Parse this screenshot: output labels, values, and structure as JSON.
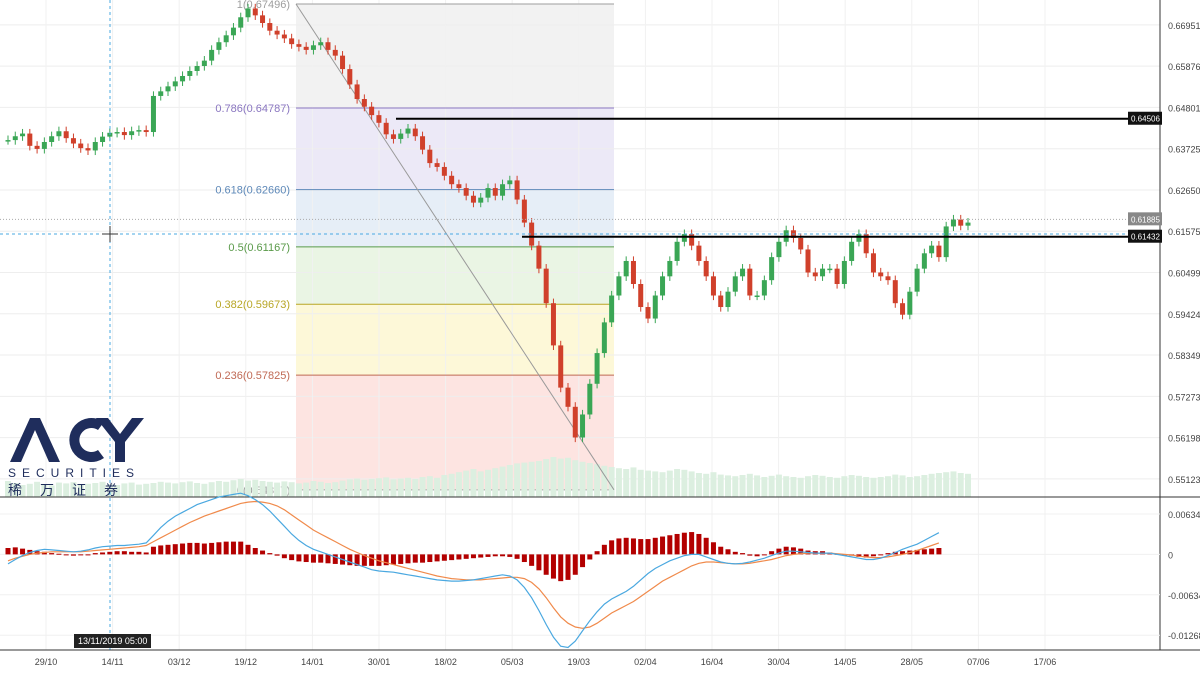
{
  "brand": {
    "name": "ACY",
    "sub": "SECURITIES",
    "cn": "稀万证券",
    "color": "#1f2d5c"
  },
  "cursor_label": "13/11/2019  05:00",
  "price_tags": [
    {
      "label": "0.64506",
      "value": 0.64506,
      "style": "dark"
    },
    {
      "label": "0.61885",
      "value": 0.61885,
      "style": "gray"
    },
    {
      "label": "0.61432",
      "value": 0.61432,
      "style": "dark"
    }
  ],
  "chart_data": [
    {
      "type": "candlestick",
      "title": "",
      "xlabel": "",
      "ylabel": "",
      "x_ticks": [
        "29/10",
        "14/11",
        "03/12",
        "19/12",
        "14/01",
        "30/01",
        "18/02",
        "05/03",
        "19/03",
        "02/04",
        "16/04",
        "30/04",
        "14/05",
        "28/05",
        "07/06",
        "17/06"
      ],
      "y_ticks": [
        "0.66951",
        "0.65876",
        "0.64801",
        "0.63725",
        "0.62650",
        "0.61575",
        "0.60499",
        "0.59424",
        "0.58349",
        "0.57273",
        "0.56198",
        "0.55123"
      ],
      "ylim": [
        0.5465,
        0.676
      ],
      "fibonacci": [
        {
          "label": "1(0.67496)",
          "value": 0.67496,
          "color": "#9e9e9e",
          "fill": "#f2f2f2"
        },
        {
          "label": "0.786(0.64787)",
          "value": 0.64787,
          "color": "#8a76c0",
          "fill": "#ece9f7"
        },
        {
          "label": "0.618(0.62660)",
          "value": 0.6266,
          "color": "#5d88b8",
          "fill": "#e6eef7"
        },
        {
          "label": "0.5(0.61167)",
          "value": 0.61167,
          "color": "#5a9a4a",
          "fill": "#eaf5e4"
        },
        {
          "label": "0.382(0.59673)",
          "value": 0.59673,
          "color": "#b8a626",
          "fill": "#fdf8d8"
        },
        {
          "label": "0.236(0.57825)",
          "value": 0.57825,
          "color": "#c06a55",
          "fill": "#fbe6e2"
        },
        {
          "label": "0(0.54837)",
          "value": 0.54837,
          "color": "#9e9e9e",
          "fill": ""
        }
      ],
      "horizontal_lines": [
        0.64506,
        0.61432
      ],
      "close": [
        0.6395,
        0.6405,
        0.6412,
        0.638,
        0.6372,
        0.639,
        0.6405,
        0.6418,
        0.64,
        0.6386,
        0.6374,
        0.6368,
        0.639,
        0.6404,
        0.6414,
        0.6416,
        0.6408,
        0.6418,
        0.6421,
        0.6416,
        0.651,
        0.6522,
        0.6535,
        0.6548,
        0.6562,
        0.6575,
        0.6588,
        0.6602,
        0.663,
        0.665,
        0.6668,
        0.6688,
        0.6715,
        0.6738,
        0.672,
        0.67,
        0.668,
        0.667,
        0.666,
        0.6645,
        0.6638,
        0.663,
        0.6642,
        0.665,
        0.663,
        0.6615,
        0.658,
        0.654,
        0.6502,
        0.6482,
        0.646,
        0.644,
        0.641,
        0.6398,
        0.6412,
        0.6425,
        0.6405,
        0.637,
        0.6335,
        0.6325,
        0.6302,
        0.628,
        0.627,
        0.625,
        0.6232,
        0.6245,
        0.627,
        0.625,
        0.628,
        0.629,
        0.624,
        0.618,
        0.612,
        0.606,
        0.597,
        0.586,
        0.575,
        0.57,
        0.562,
        0.568,
        0.576,
        0.584,
        0.592,
        0.599,
        0.604,
        0.608,
        0.602,
        0.596,
        0.593,
        0.599,
        0.604,
        0.608,
        0.613,
        0.615,
        0.612,
        0.608,
        0.604,
        0.599,
        0.596,
        0.6,
        0.604,
        0.606,
        0.599,
        0.599,
        0.603,
        0.609,
        0.613,
        0.616,
        0.614,
        0.611,
        0.605,
        0.604,
        0.606,
        0.606,
        0.602,
        0.608,
        0.613,
        0.615,
        0.61,
        0.605,
        0.604,
        0.603,
        0.597,
        0.594,
        0.6,
        0.606,
        0.61,
        0.612,
        0.609,
        0.617,
        0.6188,
        0.6172,
        0.618
      ],
      "volume": [
        0.4,
        0.35,
        0.3,
        0.33,
        0.38,
        0.31,
        0.29,
        0.36,
        0.34,
        0.37,
        0.3,
        0.33,
        0.35,
        0.38,
        0.32,
        0.3,
        0.34,
        0.36,
        0.31,
        0.33,
        0.35,
        0.38,
        0.36,
        0.34,
        0.37,
        0.39,
        0.35,
        0.33,
        0.37,
        0.4,
        0.38,
        0.42,
        0.45,
        0.41,
        0.43,
        0.4,
        0.38,
        0.36,
        0.39,
        0.37,
        0.34,
        0.36,
        0.4,
        0.38,
        0.35,
        0.37,
        0.41,
        0.44,
        0.46,
        0.43,
        0.45,
        0.47,
        0.49,
        0.44,
        0.46,
        0.48,
        0.45,
        0.5,
        0.52,
        0.48,
        0.55,
        0.58,
        0.62,
        0.66,
        0.7,
        0.64,
        0.68,
        0.72,
        0.76,
        0.8,
        0.84,
        0.86,
        0.88,
        0.9,
        0.95,
        1.0,
        0.96,
        0.98,
        0.92,
        0.88,
        0.85,
        0.82,
        0.78,
        0.75,
        0.72,
        0.7,
        0.74,
        0.68,
        0.66,
        0.64,
        0.62,
        0.66,
        0.7,
        0.68,
        0.64,
        0.6,
        0.58,
        0.62,
        0.56,
        0.54,
        0.52,
        0.55,
        0.58,
        0.54,
        0.5,
        0.53,
        0.56,
        0.52,
        0.5,
        0.48,
        0.52,
        0.55,
        0.53,
        0.5,
        0.48,
        0.52,
        0.55,
        0.53,
        0.5,
        0.48,
        0.5,
        0.52,
        0.56,
        0.54,
        0.5,
        0.52,
        0.55,
        0.58,
        0.6,
        0.62,
        0.64,
        0.6,
        0.58
      ],
      "macd": {
        "ylim": [
          -0.015,
          0.009
        ],
        "y_ticks": [
          "0.00634",
          "0",
          "-0.00634",
          "-0.01268"
        ],
        "tick_values": [
          0.00634,
          0,
          -0.00634,
          -0.01268
        ],
        "hist": [
          0.001,
          0.0011,
          0.0009,
          0.0007,
          0.0005,
          0.0004,
          0.0002,
          0.0001,
          -0.0001,
          -0.0002,
          -0.0001,
          0.0,
          0.0002,
          0.0003,
          0.0004,
          0.0005,
          0.0005,
          0.0004,
          0.0004,
          0.0003,
          0.0012,
          0.0014,
          0.0015,
          0.0016,
          0.0017,
          0.0018,
          0.0018,
          0.0017,
          0.0018,
          0.0019,
          0.002,
          0.002,
          0.002,
          0.0015,
          0.001,
          0.0006,
          0.0002,
          -0.0002,
          -0.0006,
          -0.0009,
          -0.0011,
          -0.0012,
          -0.0013,
          -0.0013,
          -0.0014,
          -0.0015,
          -0.0016,
          -0.0017,
          -0.0018,
          -0.0018,
          -0.0018,
          -0.0018,
          -0.0017,
          -0.0016,
          -0.0015,
          -0.0014,
          -0.0013,
          -0.0013,
          -0.0012,
          -0.0011,
          -0.001,
          -0.0009,
          -0.0008,
          -0.0007,
          -0.0006,
          -0.0005,
          -0.0004,
          -0.0003,
          -0.0003,
          -0.0004,
          -0.0007,
          -0.0012,
          -0.0018,
          -0.0025,
          -0.0032,
          -0.0038,
          -0.0042,
          -0.004,
          -0.0032,
          -0.002,
          -0.0008,
          0.0005,
          0.0015,
          0.0022,
          0.0025,
          0.0026,
          0.0025,
          0.0024,
          0.0024,
          0.0026,
          0.0028,
          0.003,
          0.0032,
          0.0034,
          0.0035,
          0.0032,
          0.0026,
          0.0019,
          0.0012,
          0.0008,
          0.0004,
          0.0002,
          -0.0002,
          -0.0003,
          0.0,
          0.0005,
          0.0009,
          0.0012,
          0.0011,
          0.0009,
          0.0006,
          0.0005,
          0.0005,
          0.0003,
          0.0001,
          0.0,
          -0.0002,
          -0.0004,
          -0.0005,
          -0.0003,
          -0.0001,
          0.0002,
          0.0004,
          0.0005,
          0.0006,
          0.0007,
          0.0008,
          0.0009,
          0.001
        ],
        "macd": [
          -0.0015,
          -0.0008,
          -0.0002,
          0.0003,
          0.0006,
          0.0008,
          0.0007,
          0.0006,
          0.0005,
          0.0004,
          0.0005,
          0.0007,
          0.001,
          0.0012,
          0.0013,
          0.0014,
          0.0014,
          0.0015,
          0.0016,
          0.0018,
          0.003,
          0.0042,
          0.0052,
          0.006,
          0.0066,
          0.0072,
          0.0078,
          0.0082,
          0.0086,
          0.009,
          0.0092,
          0.0094,
          0.0096,
          0.0092,
          0.0086,
          0.0078,
          0.0068,
          0.0056,
          0.0044,
          0.0032,
          0.0022,
          0.0014,
          0.0008,
          0.0004,
          0.0,
          -0.0004,
          -0.0008,
          -0.0012,
          -0.0016,
          -0.002,
          -0.0024,
          -0.0026,
          -0.0027,
          -0.0028,
          -0.003,
          -0.0032,
          -0.0034,
          -0.0036,
          -0.0038,
          -0.004,
          -0.0041,
          -0.0042,
          -0.0042,
          -0.0041,
          -0.004,
          -0.0038,
          -0.0036,
          -0.0034,
          -0.0032,
          -0.0034,
          -0.004,
          -0.0052,
          -0.0068,
          -0.0088,
          -0.011,
          -0.013,
          -0.0144,
          -0.0146,
          -0.0136,
          -0.012,
          -0.0104,
          -0.009,
          -0.0078,
          -0.007,
          -0.0064,
          -0.0058,
          -0.005,
          -0.004,
          -0.003,
          -0.0022,
          -0.0016,
          -0.001,
          -0.0006,
          -0.0002,
          0.0,
          0.0,
          -0.0004,
          -0.0008,
          -0.0012,
          -0.0014,
          -0.0015,
          -0.0014,
          -0.0012,
          -0.0009,
          -0.0006,
          -0.0002,
          0.0002,
          0.0005,
          0.0005,
          0.0004,
          0.0003,
          0.0002,
          0.0002,
          0.0002,
          0.0,
          -0.0002,
          -0.0004,
          -0.0006,
          -0.0008,
          -0.0008,
          -0.0006,
          -0.0002,
          0.0003,
          0.0008,
          0.0012,
          0.0016,
          0.0022,
          0.0028,
          0.0034
        ],
        "signal": [
          -0.001,
          -0.0006,
          -0.0003,
          0.0,
          0.0002,
          0.0003,
          0.0004,
          0.0004,
          0.0004,
          0.0004,
          0.0004,
          0.0005,
          0.0006,
          0.0007,
          0.0008,
          0.0009,
          0.001,
          0.0011,
          0.0012,
          0.0014,
          0.002,
          0.0026,
          0.0032,
          0.0038,
          0.0044,
          0.005,
          0.0055,
          0.006,
          0.0064,
          0.0068,
          0.0072,
          0.0076,
          0.008,
          0.0082,
          0.0083,
          0.0082,
          0.008,
          0.0076,
          0.007,
          0.0062,
          0.0054,
          0.0046,
          0.0038,
          0.0032,
          0.0026,
          0.002,
          0.0014,
          0.0008,
          0.0003,
          -0.0002,
          -0.0006,
          -0.001,
          -0.0013,
          -0.0016,
          -0.0019,
          -0.0022,
          -0.0025,
          -0.0028,
          -0.0031,
          -0.0034,
          -0.0036,
          -0.0038,
          -0.0039,
          -0.004,
          -0.004,
          -0.004,
          -0.0039,
          -0.0038,
          -0.0037,
          -0.0036,
          -0.0036,
          -0.0038,
          -0.0044,
          -0.0054,
          -0.0068,
          -0.0084,
          -0.0098,
          -0.0108,
          -0.0114,
          -0.0116,
          -0.0114,
          -0.0108,
          -0.01,
          -0.0092,
          -0.0086,
          -0.008,
          -0.0074,
          -0.0066,
          -0.0058,
          -0.005,
          -0.0042,
          -0.0036,
          -0.003,
          -0.0024,
          -0.0018,
          -0.0014,
          -0.0012,
          -0.0012,
          -0.0013,
          -0.0014,
          -0.0015,
          -0.0015,
          -0.0014,
          -0.0012,
          -0.001,
          -0.0008,
          -0.0005,
          -0.0002,
          0.0,
          0.0001,
          0.0002,
          0.0002,
          0.0002,
          0.0002,
          0.0001,
          0.0,
          -0.0001,
          -0.0003,
          -0.0004,
          -0.0005,
          -0.0005,
          -0.0004,
          -0.0002,
          0.0,
          0.0003,
          0.0006,
          0.001,
          0.0014,
          0.0018
        ],
        "colors": {
          "macd": "#4aa8e0",
          "signal": "#f08a4b",
          "hist": "#b30000"
        }
      },
      "colors": {
        "up": "#3aa655",
        "down": "#d0402b",
        "volume": "#dcefe0"
      }
    }
  ]
}
